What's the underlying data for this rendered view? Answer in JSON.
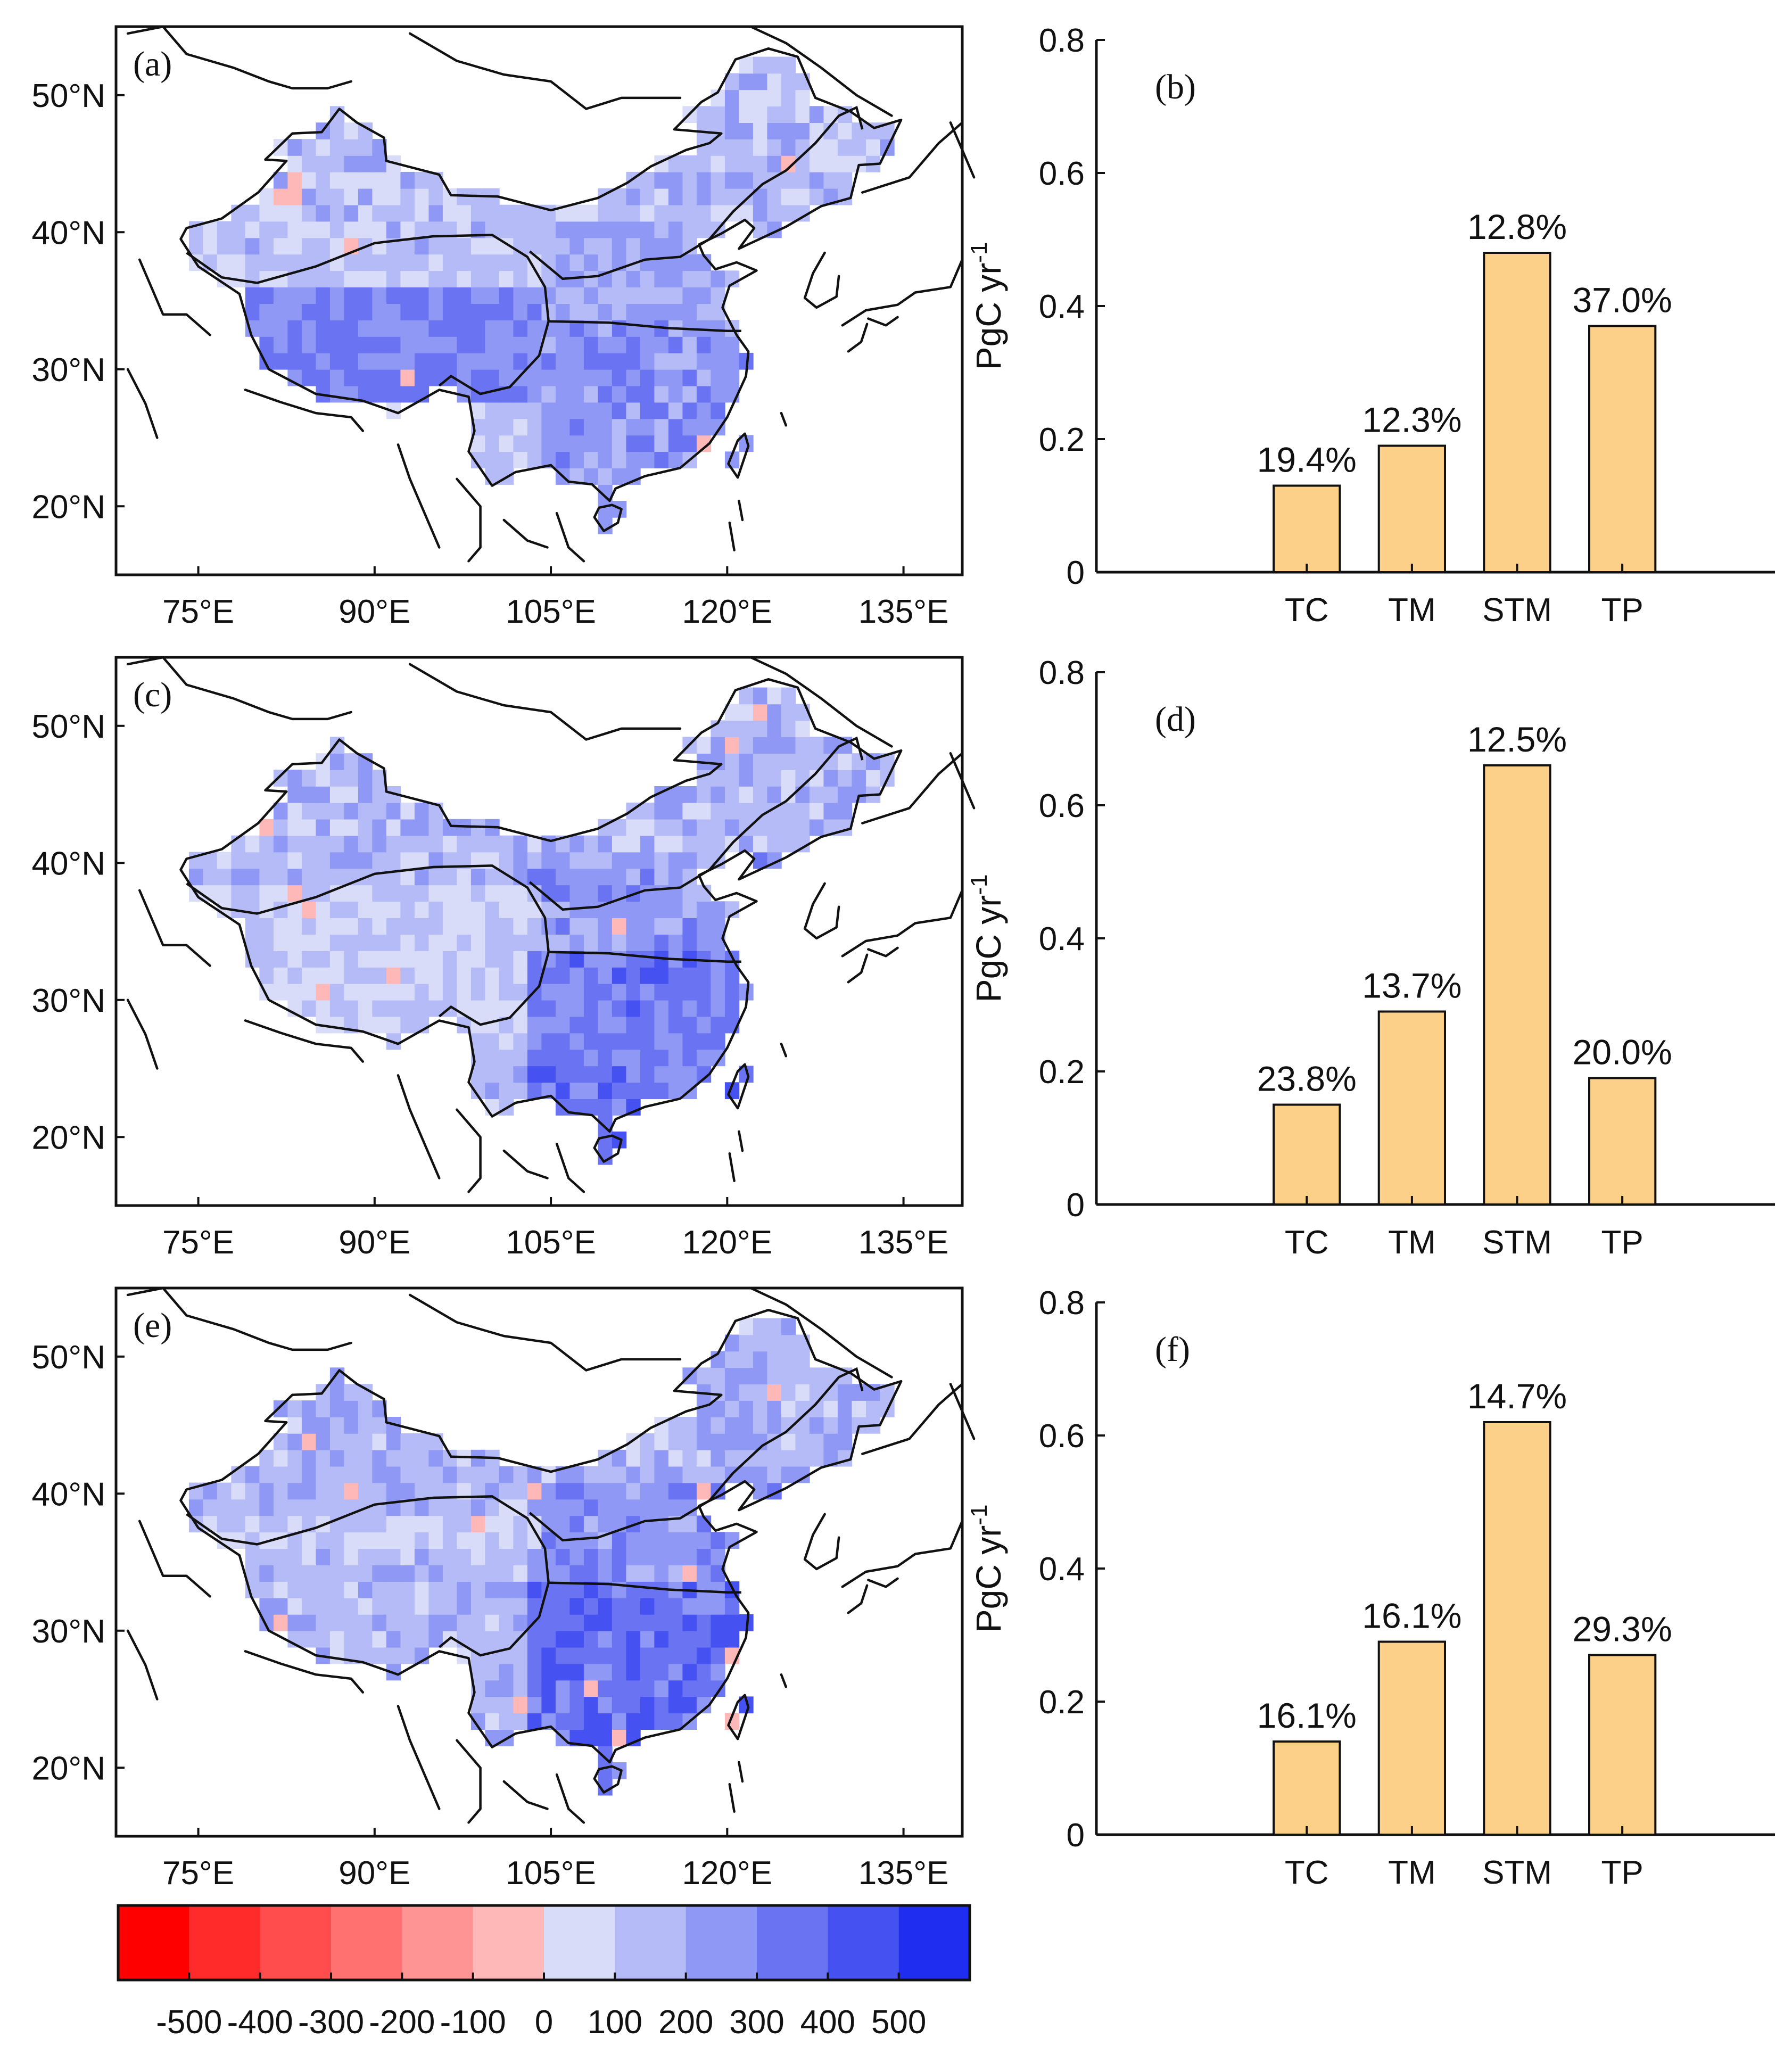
{
  "chart_data": [
    {
      "panel": "(a)",
      "type": "heatmap",
      "xticks": [
        "75°E",
        "90°E",
        "105°E",
        "120°E",
        "135°E"
      ],
      "yticks": [
        "20°N",
        "30°N",
        "40°N",
        "50°N"
      ],
      "lon_range": [
        68,
        140
      ],
      "lat_range": [
        15,
        55
      ],
      "zones": {
        "TC": {
          "west": 76,
          "east": 96,
          "south": 31,
          "north": 38,
          "mean": 110
        },
        "TM": {
          "west": 80,
          "east": 133,
          "south": 38,
          "north": 51,
          "mean": 140
        },
        "STM": {
          "west": 98,
          "east": 122,
          "south": 22,
          "north": 34,
          "mean": 250
        },
        "TP": {
          "west": 79,
          "east": 104,
          "south": 27,
          "north": 36,
          "mean": 310
        }
      }
    },
    {
      "panel": "(b)",
      "type": "bar",
      "categories": [
        "TC",
        "TM",
        "STM",
        "TP"
      ],
      "values": [
        0.13,
        0.19,
        0.48,
        0.37
      ],
      "data_labels": [
        "19.4%",
        "12.3%",
        "12.8%",
        "37.0%"
      ],
      "ylabel_main": "PgC yr",
      "ylabel_sup": "-1",
      "yticks": [
        "0",
        "0.2",
        "0.4",
        "0.6",
        "0.8"
      ],
      "ylim": [
        0,
        0.8
      ],
      "bar_color": "#fdd08a"
    },
    {
      "panel": "(c)",
      "type": "heatmap",
      "xticks": [
        "75°E",
        "90°E",
        "105°E",
        "120°E",
        "135°E"
      ],
      "yticks": [
        "20°N",
        "30°N",
        "40°N",
        "50°N"
      ],
      "lon_range": [
        68,
        140
      ],
      "lat_range": [
        15,
        55
      ],
      "zones": {
        "TC": {
          "west": 76,
          "east": 96,
          "south": 31,
          "north": 38,
          "mean": 90
        },
        "TM": {
          "west": 80,
          "east": 133,
          "south": 38,
          "north": 51,
          "mean": 160
        },
        "STM": {
          "west": 98,
          "east": 122,
          "south": 22,
          "north": 34,
          "mean": 330
        },
        "TP": {
          "west": 79,
          "east": 104,
          "south": 27,
          "north": 36,
          "mean": 110
        }
      }
    },
    {
      "panel": "(d)",
      "type": "bar",
      "categories": [
        "TC",
        "TM",
        "STM",
        "TP"
      ],
      "values": [
        0.15,
        0.29,
        0.66,
        0.19
      ],
      "data_labels": [
        "23.8%",
        "13.7%",
        "12.5%",
        "20.0%"
      ],
      "ylabel_main": "PgC yr",
      "ylabel_sup": "-1",
      "yticks": [
        "0",
        "0.2",
        "0.4",
        "0.6",
        "0.8"
      ],
      "ylim": [
        0,
        0.8
      ],
      "bar_color": "#fdd08a"
    },
    {
      "panel": "(e)",
      "type": "heatmap",
      "xticks": [
        "75°E",
        "90°E",
        "105°E",
        "120°E",
        "135°E"
      ],
      "yticks": [
        "20°N",
        "30°N",
        "40°N",
        "50°N"
      ],
      "lon_range": [
        68,
        140
      ],
      "lat_range": [
        15,
        55
      ],
      "zones": {
        "TC": {
          "west": 76,
          "east": 96,
          "south": 31,
          "north": 38,
          "mean": 100
        },
        "TM": {
          "west": 80,
          "east": 133,
          "south": 38,
          "north": 51,
          "mean": 170
        },
        "STM": {
          "west": 98,
          "east": 122,
          "south": 22,
          "north": 34,
          "mean": 360
        },
        "TP": {
          "west": 79,
          "east": 104,
          "south": 27,
          "north": 36,
          "mean": 170
        }
      }
    },
    {
      "panel": "(f)",
      "type": "bar",
      "categories": [
        "TC",
        "TM",
        "STM",
        "TP"
      ],
      "values": [
        0.14,
        0.29,
        0.62,
        0.27
      ],
      "data_labels": [
        "16.1%",
        "16.1%",
        "14.7%",
        "29.3%"
      ],
      "ylabel_main": "PgC yr",
      "ylabel_sup": "-1",
      "yticks": [
        "0",
        "0.2",
        "0.4",
        "0.6",
        "0.8"
      ],
      "ylim": [
        0,
        0.8
      ],
      "bar_color": "#fdd08a"
    }
  ],
  "colorbar": {
    "tick_labels": [
      "-500",
      "-400",
      "-300",
      "-200",
      "-100",
      "0",
      "100",
      "200",
      "300",
      "400",
      "500"
    ],
    "bins": [
      -600,
      -500,
      -400,
      -300,
      -200,
      -100,
      0,
      100,
      200,
      300,
      400,
      500,
      600
    ],
    "colors": [
      "#ff0000",
      "#ff2a2a",
      "#ff4d4d",
      "#ff7070",
      "#ff9494",
      "#ffb8b8",
      "#d8dcf8",
      "#b4bbf6",
      "#8f98f4",
      "#6a74f2",
      "#4551f1",
      "#1f2df0"
    ]
  }
}
